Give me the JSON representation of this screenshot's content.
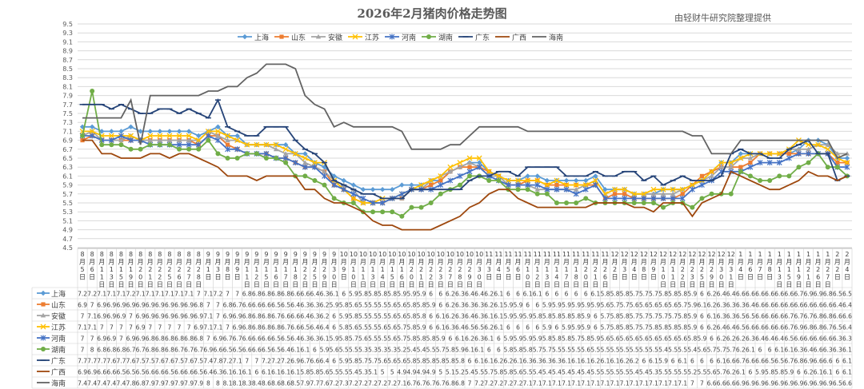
{
  "title": "2026年2月猪肉价格走势图",
  "source": "由轻财牛研究院整理提供",
  "chart_data": {
    "type": "line",
    "ylim": [
      4.5,
      9.5
    ],
    "ystep": 0.2,
    "grid": true,
    "legend_position": "top",
    "categories": [
      "8月5日",
      "8月6日",
      "8月11日",
      "8月13日",
      "8月15日",
      "8月19日",
      "8月20日",
      "8月21日",
      "8月22日",
      "8月25日",
      "8月26日",
      "8月27日",
      "8月28日",
      "9月1日",
      "9月3日",
      "9月8日",
      "9月9日",
      "9月11日",
      "9月12日",
      "9月15日",
      "9月16日",
      "9月17日",
      "9月18日",
      "9月22日",
      "9月25日",
      "9月29日",
      "9月30日",
      "10月9日",
      "10月10日",
      "10月11日",
      "10月13日",
      "10月14日",
      "10月15日",
      "10月16日",
      "10月20日",
      "10月21日",
      "10月22日",
      "10月23日",
      "10月27日",
      "10月28日",
      "10月29日",
      "10月30日",
      "11月3日",
      "11月4日",
      "11月5日",
      "11月6日",
      "11月10日",
      "11月12日",
      "11月13日",
      "11月14日",
      "11月17日",
      "11月18日",
      "11月20日",
      "11月21日",
      "11月26日",
      "12月2日",
      "12月3日",
      "12月4日",
      "12月8日",
      "12月9日",
      "12月10日",
      "12月11日",
      "12月22日",
      "12月23日",
      "12月25日",
      "12月29日",
      "12月30日",
      "12月31日",
      "1月4日",
      "1月6日",
      "1月7日",
      "1月8日",
      "1月13日",
      "1月15日",
      "1月19日",
      "1月21日",
      "1月26日",
      "1月27日",
      "2月2日",
      "2月4日"
    ],
    "series": [
      {
        "name": "上海",
        "color": "#5B9BD5",
        "marker": "diamond",
        "values": [
          7.2,
          7.2,
          7.1,
          7.1,
          7.1,
          7.2,
          7.1,
          7.1,
          7.1,
          7.1,
          7.1,
          7.1,
          7.0,
          7.1,
          7.2,
          7.0,
          7.0,
          6.8,
          6.8,
          6.8,
          6.8,
          6.8,
          6.6,
          6.6,
          6.4,
          6.3,
          6.1,
          6.0,
          5.9,
          5.8,
          5.8,
          5.8,
          5.8,
          5.9,
          5.9,
          5.9,
          6.0,
          6.0,
          6.2,
          6.3,
          6.4,
          6.4,
          6.2,
          6.1,
          6.0,
          6.0,
          6.1,
          6.1,
          6.0,
          6.0,
          6.0,
          6.0,
          6.0,
          6.1,
          5.8,
          5.8,
          5.8,
          5.7,
          5.7,
          5.7,
          5.8,
          5.8,
          5.8,
          5.9,
          6.0,
          6.2,
          6.4,
          6.4,
          6.6,
          6.6,
          6.6,
          6.6,
          6.6,
          6.6,
          6.7,
          6.9,
          6.9,
          6.8,
          6.5,
          6.5
        ]
      },
      {
        "name": "山东",
        "color": "#ED7D31",
        "marker": "square",
        "values": [
          6.9,
          7.0,
          6.9,
          6.9,
          6.9,
          6.9,
          6.9,
          6.9,
          6.9,
          6.9,
          6.9,
          6.9,
          6.8,
          7.0,
          7.0,
          6.8,
          6.7,
          6.6,
          6.6,
          6.6,
          6.5,
          6.5,
          6.4,
          6.3,
          6.3,
          6.2,
          5.9,
          5.8,
          5.6,
          5.5,
          5.5,
          5.5,
          5.6,
          5.6,
          5.8,
          5.8,
          5.9,
          6.0,
          6.2,
          6.3,
          6.3,
          6.3,
          6.2,
          6.1,
          5.9,
          5.9,
          6.0,
          6.0,
          5.9,
          5.9,
          5.9,
          5.9,
          5.9,
          5.9,
          5.6,
          5.7,
          5.7,
          5.6,
          5.6,
          5.6,
          5.6,
          5.6,
          5.7,
          5.9,
          6.1,
          6.2,
          6.3,
          6.3,
          6.3,
          6.4,
          6.6,
          6.6,
          6.6,
          6.6,
          6.6,
          6.6,
          6.6,
          6.6,
          6.4,
          6.4
        ]
      },
      {
        "name": "安徽",
        "color": "#A5A5A5",
        "marker": "triangle",
        "values": [
          7.0,
          7.1,
          6.9,
          6.9,
          6.9,
          7.0,
          6.9,
          6.9,
          6.9,
          6.9,
          6.9,
          6.9,
          6.9,
          7.1,
          7.0,
          6.9,
          6.9,
          6.8,
          6.8,
          6.8,
          6.7,
          6.6,
          6.6,
          6.4,
          6.3,
          6.2,
          6.0,
          5.9,
          5.8,
          5.5,
          5.5,
          5.5,
          5.6,
          5.6,
          5.8,
          5.8,
          6.0,
          6.1,
          6.2,
          6.3,
          6.4,
          6.3,
          6.1,
          6.1,
          5.9,
          5.9,
          5.9,
          5.8,
          5.8,
          5.8,
          5.8,
          5.8,
          5.9,
          6.0,
          5.7,
          5.8,
          5.8,
          5.7,
          5.7,
          5.7,
          5.7,
          5.7,
          5.8,
          5.9,
          6.0,
          6.1,
          6.3,
          6.3,
          6.5,
          6.5,
          6.6,
          6.6,
          6.6,
          6.7,
          6.7,
          6.7,
          6.8,
          6.8,
          6.6,
          6.6
        ]
      },
      {
        "name": "江苏",
        "color": "#FFC000",
        "marker": "x",
        "values": [
          7.1,
          7.1,
          7.0,
          7.0,
          7.0,
          7.0,
          6.9,
          7.0,
          7.0,
          7.0,
          7.0,
          7.0,
          6.9,
          7.1,
          7.1,
          7.0,
          6.9,
          6.8,
          6.8,
          6.8,
          6.8,
          6.7,
          6.6,
          6.5,
          6.4,
          6.4,
          6.0,
          5.8,
          5.6,
          5.5,
          5.5,
          5.6,
          5.6,
          5.7,
          5.8,
          5.9,
          6.0,
          6.1,
          6.3,
          6.4,
          6.5,
          6.5,
          6.2,
          6.1,
          6.0,
          6.0,
          6.0,
          6.0,
          5.9,
          6.0,
          5.9,
          5.9,
          5.9,
          6.0,
          5.7,
          5.8,
          5.8,
          5.7,
          5.7,
          5.8,
          5.8,
          5.8,
          5.8,
          5.9,
          6.0,
          6.2,
          6.4,
          6.4,
          6.5,
          6.6,
          6.6,
          6.6,
          6.6,
          6.7,
          6.9,
          6.8,
          6.8,
          6.7,
          6.5,
          6.4
        ]
      },
      {
        "name": "河南",
        "color": "#4472C4",
        "marker": "star",
        "values": [
          7.0,
          7.0,
          6.9,
          6.9,
          7.0,
          6.9,
          6.9,
          6.8,
          6.8,
          6.8,
          6.8,
          6.8,
          6.8,
          7.0,
          6.9,
          6.7,
          6.7,
          6.6,
          6.6,
          6.6,
          6.5,
          6.5,
          6.4,
          6.3,
          6.3,
          6.1,
          5.9,
          5.8,
          5.7,
          5.6,
          5.5,
          5.5,
          5.6,
          5.7,
          5.8,
          5.8,
          5.8,
          5.9,
          6.0,
          6.1,
          6.2,
          6.3,
          6.1,
          6.0,
          5.9,
          5.9,
          5.9,
          5.9,
          5.8,
          5.8,
          5.8,
          5.7,
          5.8,
          5.9,
          5.6,
          5.6,
          5.6,
          5.6,
          5.6,
          5.6,
          5.6,
          5.6,
          5.6,
          5.8,
          5.9,
          6.0,
          6.2,
          6.2,
          6.2,
          6.3,
          6.4,
          6.4,
          6.4,
          6.5,
          6.6,
          6.6,
          6.6,
          6.6,
          6.3,
          6.3
        ]
      },
      {
        "name": "湖南",
        "color": "#70AD47",
        "marker": "circle",
        "values": [
          7.0,
          8.0,
          6.8,
          6.8,
          6.8,
          6.7,
          6.7,
          6.8,
          6.8,
          6.8,
          6.7,
          6.7,
          6.7,
          6.9,
          6.6,
          6.5,
          6.5,
          6.6,
          6.6,
          6.5,
          6.5,
          6.4,
          6.1,
          6.1,
          6.0,
          5.9,
          5.6,
          5.5,
          5.5,
          5.3,
          5.3,
          5.3,
          5.3,
          5.2,
          5.4,
          5.4,
          5.5,
          5.7,
          5.8,
          5.9,
          6.1,
          6.1,
          6.0,
          6.0,
          5.8,
          5.8,
          5.8,
          5.7,
          5.7,
          5.5,
          5.5,
          5.5,
          5.6,
          5.5,
          5.5,
          5.5,
          5.5,
          5.5,
          5.5,
          5.5,
          5.4,
          5.5,
          5.5,
          5.4,
          5.6,
          5.7,
          5.7,
          5.7,
          6.2,
          6.1,
          6.0,
          6.0,
          6.1,
          6.1,
          6.3,
          6.4,
          6.6,
          6.3,
          6.3,
          6.1
        ]
      },
      {
        "name": "广东",
        "color": "#264478",
        "marker": "dash",
        "values": [
          7.7,
          7.7,
          7.7,
          7.6,
          7.7,
          7.6,
          7.5,
          7.5,
          7.6,
          7.6,
          7.5,
          7.6,
          7.5,
          7.4,
          7.8,
          7.2,
          7.1,
          7.0,
          7.0,
          7.2,
          7.2,
          7.2,
          6.9,
          6.7,
          6.6,
          6.4,
          6.0,
          5.9,
          5.8,
          5.7,
          5.7,
          5.6,
          5.6,
          5.6,
          5.8,
          5.8,
          5.8,
          5.8,
          5.8,
          5.8,
          6.0,
          6.1,
          6.1,
          6.2,
          6.2,
          6.1,
          6.3,
          6.3,
          6.3,
          6.3,
          6.1,
          6.1,
          6.1,
          6.2,
          6.1,
          6.1,
          6.2,
          6.2,
          6.0,
          6.1,
          5.9,
          6.0,
          6.1,
          6.0,
          6.0,
          6.0,
          6.1,
          6.6,
          6.7,
          6.6,
          6.6,
          6.5,
          6.5,
          6.7,
          6.8,
          6.9,
          6.6,
          6.6,
          6.0,
          6.1
        ]
      },
      {
        "name": "广西",
        "color": "#9E480E",
        "marker": "none",
        "values": [
          6.9,
          6.9,
          6.6,
          6.6,
          6.5,
          6.5,
          6.5,
          6.6,
          6.6,
          6.5,
          6.6,
          6.6,
          6.5,
          6.4,
          6.3,
          6.1,
          6.1,
          6.1,
          6.0,
          6.1,
          6.1,
          6.1,
          6.1,
          5.8,
          5.8,
          5.6,
          5.5,
          5.5,
          5.4,
          5.3,
          5.1,
          5.0,
          5.0,
          4.9,
          4.9,
          4.9,
          4.9,
          5.0,
          5.1,
          5.2,
          5.4,
          5.5,
          5.7,
          5.8,
          5.8,
          5.6,
          5.5,
          5.4,
          5.4,
          5.4,
          5.4,
          5.4,
          5.4,
          5.5,
          5.5,
          5.5,
          5.5,
          5.4,
          5.4,
          5.3,
          5.5,
          5.5,
          5.5,
          5.2,
          5.5,
          5.6,
          5.7,
          6.2,
          6.1,
          6.0,
          5.9,
          5.8,
          5.8,
          5.9,
          6.0,
          6.2,
          6.1,
          6.1,
          6.0,
          6.1
        ]
      },
      {
        "name": "海南",
        "color": "#636363",
        "marker": "none",
        "values": [
          7.4,
          7.4,
          7.4,
          7.4,
          7.4,
          7.8,
          6.8,
          7.9,
          7.9,
          7.9,
          7.9,
          7.9,
          7.9,
          8.0,
          8.0,
          8.1,
          8.1,
          8.3,
          8.4,
          8.6,
          8.6,
          8.6,
          8.5,
          7.9,
          7.7,
          7.6,
          7.2,
          7.3,
          7.2,
          7.2,
          7.2,
          7.2,
          7.2,
          7.1,
          6.7,
          6.7,
          6.7,
          6.7,
          6.8,
          6.8,
          7.0,
          7.2,
          7.2,
          7.2,
          7.2,
          7.2,
          7.1,
          7.1,
          7.1,
          7.1,
          7.1,
          7.1,
          7.1,
          7.1,
          7.1,
          7.1,
          7.1,
          7.1,
          7.1,
          7.1,
          7.1,
          7.1,
          7.1,
          7.0,
          7.0,
          6.6,
          6.6,
          6.6,
          6.9,
          6.9,
          6.9,
          6.9,
          6.9,
          6.9,
          6.9,
          6.9,
          6.9,
          6.9,
          6.5,
          6.6
        ]
      }
    ]
  }
}
